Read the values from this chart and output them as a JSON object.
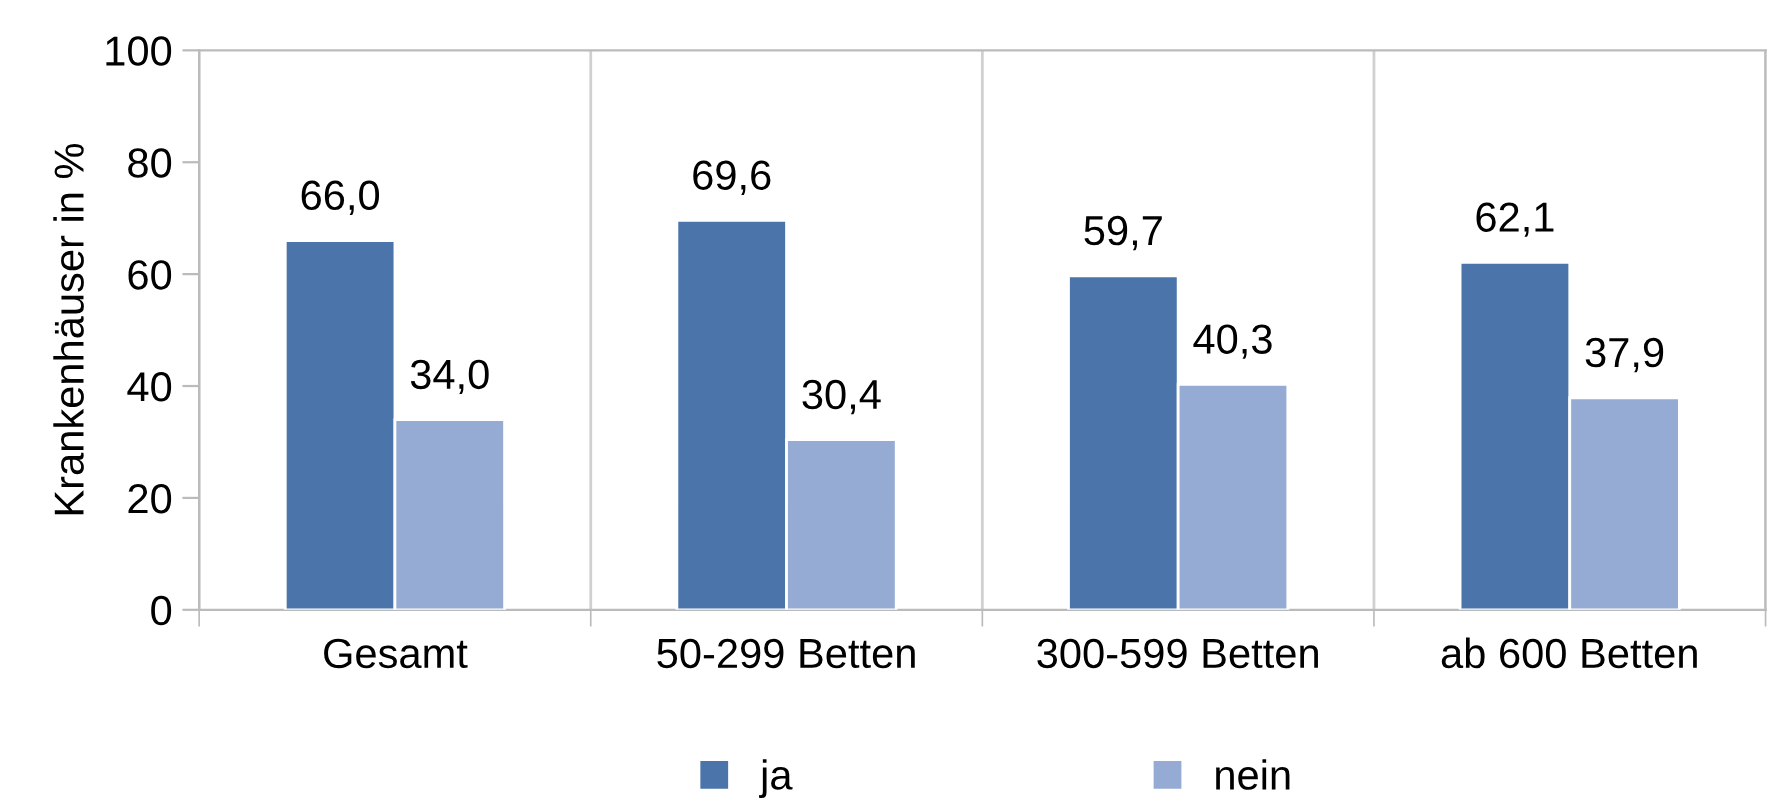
{
  "chart_data": {
    "type": "bar",
    "ylabel": "Krankenhäuser in %",
    "categories": [
      "Gesamt",
      "50-299 Betten",
      "300-599 Betten",
      "ab 600 Betten"
    ],
    "series": [
      {
        "name": "ja",
        "color": "#4a74aa",
        "values": [
          66.0,
          69.6,
          59.7,
          62.1
        ],
        "value_labels": [
          "66,0",
          "69,6",
          "59,7",
          "62,1"
        ]
      },
      {
        "name": "nein",
        "color": "#95abd3",
        "values": [
          34.0,
          30.4,
          40.3,
          37.9
        ],
        "value_labels": [
          "34,0",
          "30,4",
          "40,3",
          "37,9"
        ]
      }
    ],
    "ylim": [
      0,
      100
    ],
    "yticks": [
      0,
      20,
      40,
      60,
      80,
      100
    ],
    "grid": "x",
    "legend": "bottom"
  }
}
